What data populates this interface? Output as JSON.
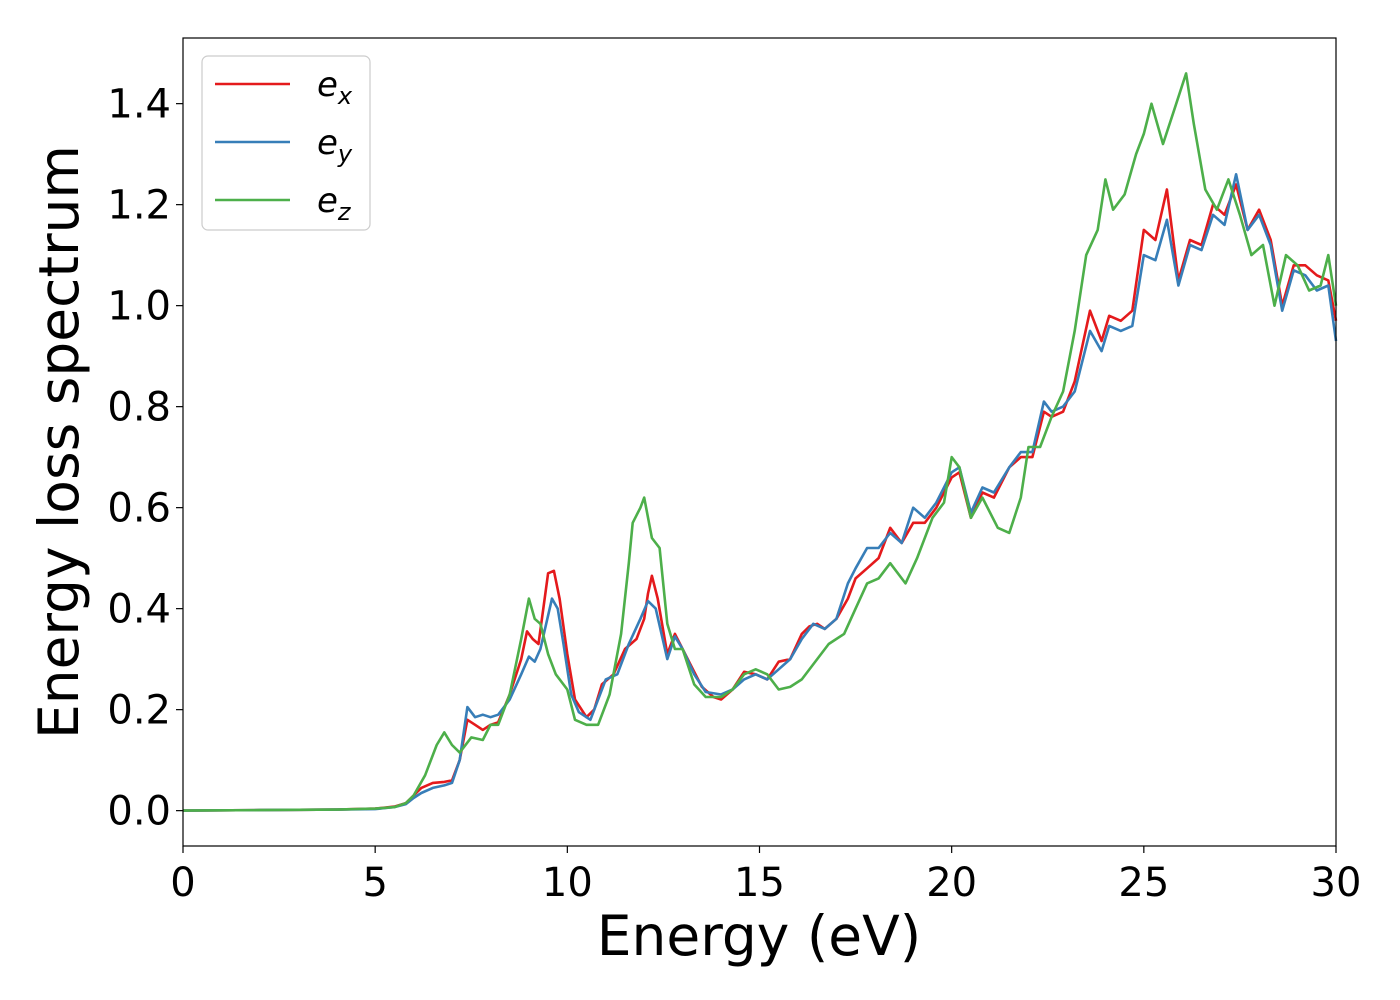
{
  "chart_data": {
    "type": "line",
    "xlabel": "Energy (eV)",
    "ylabel": "Energy loss spectrum",
    "xlim": [
      0,
      30
    ],
    "ylim": [
      -0.07,
      1.53
    ],
    "xticks": [
      "0",
      "5",
      "10",
      "15",
      "20",
      "25",
      "30"
    ],
    "yticks": [
      "0.0",
      "0.2",
      "0.4",
      "0.6",
      "0.8",
      "1.0",
      "1.2",
      "1.4"
    ],
    "grid": false,
    "legend_position": "top-left",
    "legend": [
      {
        "base": "e",
        "sub": "x",
        "color": "#e41a1c"
      },
      {
        "base": "e",
        "sub": "y",
        "color": "#377eb8"
      },
      {
        "base": "e",
        "sub": "z",
        "color": "#4daf4a"
      }
    ],
    "series": [
      {
        "name": "e_x",
        "color": "#e41a1c",
        "points": [
          [
            0,
            0.0
          ],
          [
            2,
            0.001
          ],
          [
            4,
            0.002
          ],
          [
            5,
            0.004
          ],
          [
            5.5,
            0.008
          ],
          [
            5.8,
            0.015
          ],
          [
            6.0,
            0.03
          ],
          [
            6.2,
            0.045
          ],
          [
            6.5,
            0.055
          ],
          [
            6.8,
            0.057
          ],
          [
            7.0,
            0.06
          ],
          [
            7.2,
            0.1
          ],
          [
            7.4,
            0.18
          ],
          [
            7.6,
            0.17
          ],
          [
            7.8,
            0.16
          ],
          [
            8.0,
            0.17
          ],
          [
            8.2,
            0.175
          ],
          [
            8.5,
            0.23
          ],
          [
            8.8,
            0.3
          ],
          [
            8.95,
            0.355
          ],
          [
            9.1,
            0.34
          ],
          [
            9.25,
            0.33
          ],
          [
            9.5,
            0.47
          ],
          [
            9.65,
            0.475
          ],
          [
            9.8,
            0.42
          ],
          [
            10.0,
            0.31
          ],
          [
            10.2,
            0.22
          ],
          [
            10.5,
            0.185
          ],
          [
            10.7,
            0.2
          ],
          [
            10.9,
            0.25
          ],
          [
            11.2,
            0.27
          ],
          [
            11.5,
            0.32
          ],
          [
            11.8,
            0.34
          ],
          [
            12.0,
            0.38
          ],
          [
            12.1,
            0.43
          ],
          [
            12.2,
            0.465
          ],
          [
            12.35,
            0.42
          ],
          [
            12.6,
            0.31
          ],
          [
            12.8,
            0.35
          ],
          [
            13.0,
            0.32
          ],
          [
            13.2,
            0.29
          ],
          [
            13.5,
            0.245
          ],
          [
            13.8,
            0.225
          ],
          [
            14.0,
            0.22
          ],
          [
            14.3,
            0.24
          ],
          [
            14.6,
            0.275
          ],
          [
            14.9,
            0.27
          ],
          [
            15.2,
            0.26
          ],
          [
            15.5,
            0.295
          ],
          [
            15.8,
            0.3
          ],
          [
            16.1,
            0.35
          ],
          [
            16.3,
            0.365
          ],
          [
            16.5,
            0.37
          ],
          [
            16.7,
            0.36
          ],
          [
            17.0,
            0.38
          ],
          [
            17.3,
            0.42
          ],
          [
            17.5,
            0.46
          ],
          [
            17.8,
            0.48
          ],
          [
            18.1,
            0.5
          ],
          [
            18.4,
            0.56
          ],
          [
            18.7,
            0.53
          ],
          [
            19.0,
            0.57
          ],
          [
            19.3,
            0.57
          ],
          [
            19.6,
            0.6
          ],
          [
            20.0,
            0.66
          ],
          [
            20.2,
            0.67
          ],
          [
            20.5,
            0.58
          ],
          [
            20.8,
            0.63
          ],
          [
            21.1,
            0.62
          ],
          [
            21.5,
            0.68
          ],
          [
            21.8,
            0.7
          ],
          [
            22.1,
            0.7
          ],
          [
            22.4,
            0.79
          ],
          [
            22.6,
            0.78
          ],
          [
            22.9,
            0.79
          ],
          [
            23.2,
            0.85
          ],
          [
            23.6,
            0.99
          ],
          [
            23.9,
            0.93
          ],
          [
            24.1,
            0.98
          ],
          [
            24.4,
            0.97
          ],
          [
            24.7,
            0.99
          ],
          [
            25.0,
            1.15
          ],
          [
            25.3,
            1.13
          ],
          [
            25.6,
            1.23
          ],
          [
            25.9,
            1.05
          ],
          [
            26.2,
            1.13
          ],
          [
            26.5,
            1.12
          ],
          [
            26.8,
            1.2
          ],
          [
            27.1,
            1.18
          ],
          [
            27.4,
            1.24
          ],
          [
            27.7,
            1.15
          ],
          [
            28.0,
            1.19
          ],
          [
            28.3,
            1.13
          ],
          [
            28.6,
            1.0
          ],
          [
            28.9,
            1.08
          ],
          [
            29.2,
            1.08
          ],
          [
            29.5,
            1.06
          ],
          [
            29.8,
            1.05
          ],
          [
            30.0,
            0.97
          ]
        ]
      },
      {
        "name": "e_y",
        "color": "#377eb8",
        "points": [
          [
            0,
            0.0
          ],
          [
            2,
            0.001
          ],
          [
            4,
            0.002
          ],
          [
            5,
            0.003
          ],
          [
            5.5,
            0.007
          ],
          [
            5.8,
            0.013
          ],
          [
            6.0,
            0.025
          ],
          [
            6.2,
            0.035
          ],
          [
            6.5,
            0.045
          ],
          [
            6.8,
            0.05
          ],
          [
            7.0,
            0.055
          ],
          [
            7.2,
            0.1
          ],
          [
            7.4,
            0.205
          ],
          [
            7.6,
            0.185
          ],
          [
            7.8,
            0.19
          ],
          [
            8.0,
            0.185
          ],
          [
            8.2,
            0.19
          ],
          [
            8.5,
            0.22
          ],
          [
            8.8,
            0.27
          ],
          [
            9.0,
            0.305
          ],
          [
            9.15,
            0.295
          ],
          [
            9.3,
            0.32
          ],
          [
            9.6,
            0.42
          ],
          [
            9.75,
            0.4
          ],
          [
            9.9,
            0.33
          ],
          [
            10.1,
            0.23
          ],
          [
            10.3,
            0.195
          ],
          [
            10.6,
            0.18
          ],
          [
            10.8,
            0.22
          ],
          [
            11.0,
            0.26
          ],
          [
            11.3,
            0.27
          ],
          [
            11.6,
            0.33
          ],
          [
            11.9,
            0.38
          ],
          [
            12.1,
            0.415
          ],
          [
            12.3,
            0.4
          ],
          [
            12.6,
            0.3
          ],
          [
            12.8,
            0.345
          ],
          [
            13.0,
            0.32
          ],
          [
            13.3,
            0.27
          ],
          [
            13.6,
            0.235
          ],
          [
            14.0,
            0.23
          ],
          [
            14.3,
            0.24
          ],
          [
            14.6,
            0.26
          ],
          [
            14.9,
            0.27
          ],
          [
            15.2,
            0.26
          ],
          [
            15.5,
            0.28
          ],
          [
            15.8,
            0.3
          ],
          [
            16.1,
            0.34
          ],
          [
            16.4,
            0.37
          ],
          [
            16.7,
            0.36
          ],
          [
            17.0,
            0.38
          ],
          [
            17.3,
            0.45
          ],
          [
            17.5,
            0.48
          ],
          [
            17.8,
            0.52
          ],
          [
            18.1,
            0.52
          ],
          [
            18.4,
            0.55
          ],
          [
            18.7,
            0.53
          ],
          [
            19.0,
            0.6
          ],
          [
            19.3,
            0.58
          ],
          [
            19.6,
            0.61
          ],
          [
            20.0,
            0.67
          ],
          [
            20.2,
            0.68
          ],
          [
            20.5,
            0.59
          ],
          [
            20.8,
            0.64
          ],
          [
            21.1,
            0.63
          ],
          [
            21.5,
            0.68
          ],
          [
            21.8,
            0.71
          ],
          [
            22.1,
            0.71
          ],
          [
            22.4,
            0.81
          ],
          [
            22.6,
            0.79
          ],
          [
            22.9,
            0.8
          ],
          [
            23.2,
            0.83
          ],
          [
            23.6,
            0.95
          ],
          [
            23.9,
            0.91
          ],
          [
            24.1,
            0.96
          ],
          [
            24.4,
            0.95
          ],
          [
            24.7,
            0.96
          ],
          [
            25.0,
            1.1
          ],
          [
            25.3,
            1.09
          ],
          [
            25.6,
            1.17
          ],
          [
            25.9,
            1.04
          ],
          [
            26.2,
            1.12
          ],
          [
            26.5,
            1.11
          ],
          [
            26.8,
            1.18
          ],
          [
            27.1,
            1.16
          ],
          [
            27.4,
            1.26
          ],
          [
            27.7,
            1.15
          ],
          [
            28.0,
            1.18
          ],
          [
            28.3,
            1.12
          ],
          [
            28.6,
            0.99
          ],
          [
            28.9,
            1.07
          ],
          [
            29.2,
            1.06
          ],
          [
            29.5,
            1.03
          ],
          [
            29.8,
            1.04
          ],
          [
            30.0,
            0.93
          ]
        ]
      },
      {
        "name": "e_z",
        "color": "#4daf4a",
        "points": [
          [
            0,
            0.0
          ],
          [
            2,
            0.001
          ],
          [
            4,
            0.002
          ],
          [
            5,
            0.004
          ],
          [
            5.5,
            0.007
          ],
          [
            5.8,
            0.015
          ],
          [
            6.0,
            0.03
          ],
          [
            6.3,
            0.07
          ],
          [
            6.6,
            0.13
          ],
          [
            6.8,
            0.155
          ],
          [
            7.0,
            0.13
          ],
          [
            7.2,
            0.115
          ],
          [
            7.5,
            0.145
          ],
          [
            7.8,
            0.14
          ],
          [
            8.0,
            0.17
          ],
          [
            8.2,
            0.17
          ],
          [
            8.5,
            0.23
          ],
          [
            8.8,
            0.34
          ],
          [
            9.0,
            0.42
          ],
          [
            9.15,
            0.38
          ],
          [
            9.3,
            0.37
          ],
          [
            9.5,
            0.31
          ],
          [
            9.7,
            0.27
          ],
          [
            10.0,
            0.24
          ],
          [
            10.2,
            0.18
          ],
          [
            10.5,
            0.17
          ],
          [
            10.8,
            0.17
          ],
          [
            11.1,
            0.23
          ],
          [
            11.4,
            0.35
          ],
          [
            11.6,
            0.49
          ],
          [
            11.7,
            0.57
          ],
          [
            11.9,
            0.6
          ],
          [
            12.0,
            0.62
          ],
          [
            12.2,
            0.54
          ],
          [
            12.4,
            0.52
          ],
          [
            12.6,
            0.37
          ],
          [
            12.8,
            0.32
          ],
          [
            13.0,
            0.32
          ],
          [
            13.3,
            0.25
          ],
          [
            13.6,
            0.225
          ],
          [
            14.0,
            0.225
          ],
          [
            14.3,
            0.24
          ],
          [
            14.6,
            0.27
          ],
          [
            14.9,
            0.28
          ],
          [
            15.2,
            0.27
          ],
          [
            15.5,
            0.24
          ],
          [
            15.8,
            0.245
          ],
          [
            16.1,
            0.26
          ],
          [
            16.5,
            0.3
          ],
          [
            16.8,
            0.33
          ],
          [
            17.2,
            0.35
          ],
          [
            17.5,
            0.4
          ],
          [
            17.8,
            0.45
          ],
          [
            18.1,
            0.46
          ],
          [
            18.4,
            0.49
          ],
          [
            18.8,
            0.45
          ],
          [
            19.1,
            0.5
          ],
          [
            19.5,
            0.58
          ],
          [
            19.8,
            0.61
          ],
          [
            20.0,
            0.7
          ],
          [
            20.2,
            0.68
          ],
          [
            20.5,
            0.58
          ],
          [
            20.8,
            0.62
          ],
          [
            21.2,
            0.56
          ],
          [
            21.5,
            0.55
          ],
          [
            21.8,
            0.62
          ],
          [
            22.0,
            0.72
          ],
          [
            22.3,
            0.72
          ],
          [
            22.6,
            0.78
          ],
          [
            22.9,
            0.83
          ],
          [
            23.2,
            0.95
          ],
          [
            23.5,
            1.1
          ],
          [
            23.8,
            1.15
          ],
          [
            24.0,
            1.25
          ],
          [
            24.2,
            1.19
          ],
          [
            24.5,
            1.22
          ],
          [
            24.8,
            1.3
          ],
          [
            25.0,
            1.34
          ],
          [
            25.2,
            1.4
          ],
          [
            25.5,
            1.32
          ],
          [
            25.8,
            1.39
          ],
          [
            26.1,
            1.46
          ],
          [
            26.3,
            1.36
          ],
          [
            26.6,
            1.23
          ],
          [
            26.9,
            1.19
          ],
          [
            27.2,
            1.25
          ],
          [
            27.5,
            1.18
          ],
          [
            27.8,
            1.1
          ],
          [
            28.1,
            1.12
          ],
          [
            28.4,
            1.0
          ],
          [
            28.7,
            1.1
          ],
          [
            29.0,
            1.08
          ],
          [
            29.3,
            1.03
          ],
          [
            29.6,
            1.04
          ],
          [
            29.8,
            1.1
          ],
          [
            30.0,
            1.0
          ]
        ]
      }
    ]
  }
}
